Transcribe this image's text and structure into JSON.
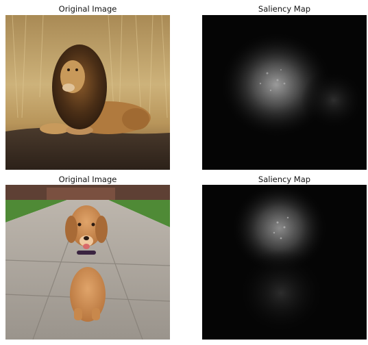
{
  "figure": {
    "panels": [
      {
        "title": "Original Image",
        "image": "lion-lying-in-dry-grass"
      },
      {
        "title": "Saliency Map",
        "image": "lion-saliency-heatmap-grayscale"
      },
      {
        "title": "Original Image",
        "image": "golden-retriever-puppy-on-sidewalk"
      },
      {
        "title": "Saliency Map",
        "image": "puppy-saliency-heatmap-grayscale"
      }
    ]
  }
}
